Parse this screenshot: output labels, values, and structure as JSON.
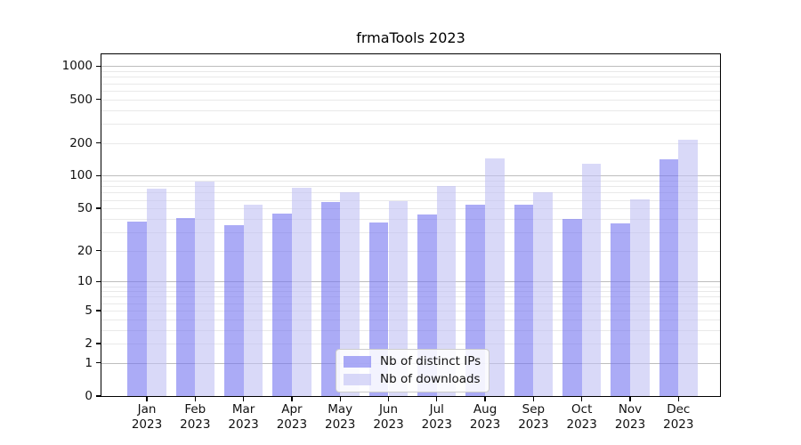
{
  "title": "frmaTools 2023",
  "colors": {
    "bar_distinct_ips": "#7373f0",
    "bar_downloads": "#c0c0f3",
    "bar_opacity": 0.6,
    "grid_major": "#bdbdbd",
    "grid_minor": "#e9e9e9",
    "axis": "#000000",
    "legend_border": "#cccccc"
  },
  "legend": {
    "items": [
      {
        "label": "Nb of distinct IPs",
        "swatch": "bar_distinct_ips"
      },
      {
        "label": "Nb of downloads",
        "swatch": "bar_downloads"
      }
    ]
  },
  "chart_data": {
    "type": "bar",
    "title": "frmaTools 2023",
    "scale": "log-like (fits log10(value+1))",
    "grid": true,
    "legend_position": "lower center",
    "xlabel": "",
    "ylabel": "",
    "ylim": [
      0,
      1300
    ],
    "yticks": [
      1000,
      500,
      200,
      100,
      50,
      20,
      10,
      5,
      2,
      1,
      0
    ],
    "categories": [
      {
        "month": "Jan",
        "year": "2023"
      },
      {
        "month": "Feb",
        "year": "2023"
      },
      {
        "month": "Mar",
        "year": "2023"
      },
      {
        "month": "Apr",
        "year": "2023"
      },
      {
        "month": "May",
        "year": "2023"
      },
      {
        "month": "Jun",
        "year": "2023"
      },
      {
        "month": "Jul",
        "year": "2023"
      },
      {
        "month": "Aug",
        "year": "2023"
      },
      {
        "month": "Sep",
        "year": "2023"
      },
      {
        "month": "Oct",
        "year": "2023"
      },
      {
        "month": "Nov",
        "year": "2023"
      },
      {
        "month": "Dec",
        "year": "2023"
      }
    ],
    "series": [
      {
        "name": "Nb of distinct IPs",
        "values": [
          38,
          41,
          35,
          45,
          57,
          37,
          44,
          54,
          54,
          40,
          36,
          142
        ]
      },
      {
        "name": "Nb of downloads",
        "values": [
          76,
          89,
          54,
          77,
          71,
          58,
          81,
          143,
          70,
          130,
          61,
          212
        ]
      }
    ]
  }
}
